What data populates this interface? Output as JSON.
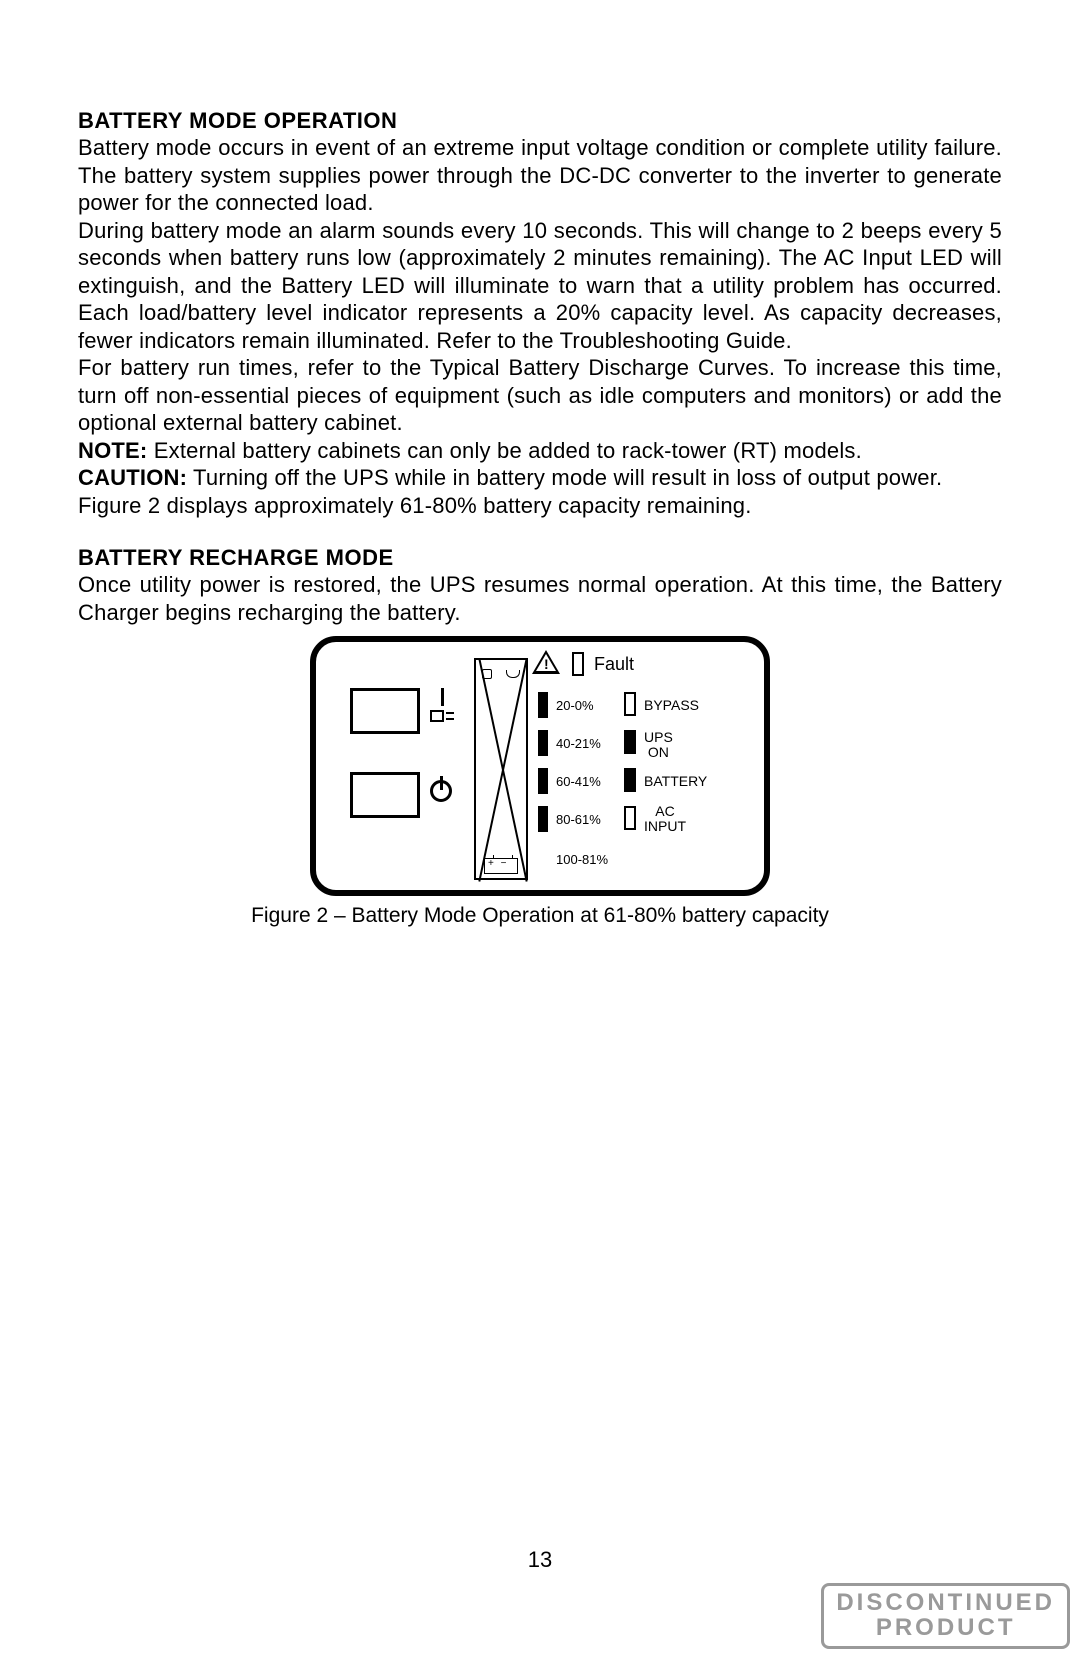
{
  "section1": {
    "heading": "BATTERY MODE OPERATION",
    "p1": "Battery mode occurs in event of an extreme input voltage condition or complete utility failure.  The battery system supplies power through the DC-DC converter to the inverter to generate power for the connected load.",
    "p2": "During battery mode an alarm sounds every 10 seconds.  This will change to 2 beeps every 5 seconds when battery runs low (approximately 2 minutes remaining).  The AC Input LED will extinguish, and the Battery LED will illuminate to warn that a utility problem has occurred.  Each load/battery level indicator represents a 20% capacity level.  As capacity decreases, fewer indicators remain illuminated.  Refer to the Troubleshooting Guide.",
    "p3": "For battery run times, refer to the Typical Battery Discharge Curves.  To increase this time, turn off non-essential pieces of equipment (such as idle computers and monitors) or add the optional external battery cabinet.",
    "note_label": "NOTE:",
    "note_text": " External battery cabinets can only be added to rack-tower (RT) models.",
    "caution_label": "CAUTION:",
    "caution_text": " Turning off the UPS while in battery mode will result in loss of output power.",
    "p4": "Figure 2 displays approximately 61-80% battery capacity remaining."
  },
  "section2": {
    "heading": "BATTERY RECHARGE MODE",
    "p1": "Once utility power is restored, the UPS resumes normal operation.  At this time, the Battery Charger begins recharging the battery."
  },
  "figure": {
    "fault_label": "Fault",
    "levels": [
      "20-0%",
      "40-21%",
      "60-41%",
      "80-61%",
      "100-81%"
    ],
    "status": [
      {
        "label": "BYPASS",
        "filled": false,
        "lines": 1
      },
      {
        "label_l1": "UPS",
        "label_l2": "ON",
        "filled": true,
        "lines": 2
      },
      {
        "label": "BATTERY",
        "filled": true,
        "lines": 1
      },
      {
        "label_l1": "AC",
        "label_l2": "INPUT",
        "filled": false,
        "lines": 2
      }
    ],
    "caption": "Figure 2 – Battery Mode Operation at 61-80% battery capacity",
    "warn_bang": "!"
  },
  "page_number": "13",
  "stamp_l1": "DISCONTINUED",
  "stamp_l2": "PRODUCT",
  "colors": {
    "text": "#000000",
    "background": "#ffffff",
    "stamp": "#9a9a9a"
  }
}
